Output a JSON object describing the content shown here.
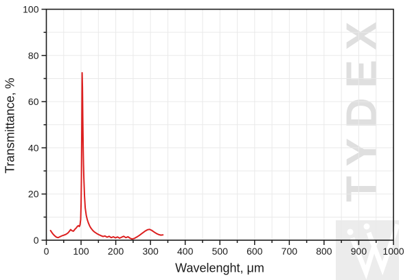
{
  "watermark": {
    "text": "TYDEX",
    "text_color": "#dfdfdf",
    "logo_bg_color": "#ececec",
    "logo_mark_color": "#ffffff"
  },
  "colors": {
    "line": "#dc1f1f",
    "grid": "#e9e9e9",
    "frame": "#1a1a1a",
    "tick_text": "#1a1a1a"
  },
  "chart_data": {
    "type": "line",
    "title": "",
    "xlabel": "Wavelenght, μm",
    "ylabel": "Transmittance, %",
    "xlim": [
      0,
      1000
    ],
    "ylim": [
      0,
      100
    ],
    "x_major_step": 100,
    "x_minor_step": 50,
    "y_major_step": 20,
    "y_minor_step": 10,
    "x_tick_labels": [
      "0",
      "100",
      "200",
      "300",
      "400",
      "500",
      "600",
      "700",
      "800",
      "900",
      "1000"
    ],
    "y_tick_labels": [
      "0",
      "20",
      "40",
      "60",
      "80",
      "100"
    ],
    "grid": true,
    "legend": false,
    "peak": {
      "wavelength_um": 103,
      "transmittance_pct": 72.5
    },
    "series": [
      {
        "name": "transmittance",
        "points": [
          [
            12,
            4.2
          ],
          [
            15,
            3.5
          ],
          [
            19,
            2.7
          ],
          [
            24,
            1.9
          ],
          [
            29,
            1.3
          ],
          [
            34,
            1.1
          ],
          [
            39,
            1.5
          ],
          [
            45,
            1.9
          ],
          [
            51,
            2.2
          ],
          [
            57,
            2.6
          ],
          [
            62,
            3.1
          ],
          [
            66,
            3.8
          ],
          [
            70,
            4.6
          ],
          [
            74,
            4.1
          ],
          [
            78,
            3.9
          ],
          [
            82,
            4.7
          ],
          [
            86,
            5.3
          ],
          [
            90,
            6.1
          ],
          [
            93,
            6.3
          ],
          [
            95,
            5.9
          ],
          [
            97,
            6.6
          ],
          [
            99,
            9.0
          ],
          [
            100,
            16
          ],
          [
            101,
            28
          ],
          [
            102,
            48
          ],
          [
            103,
            72.5
          ],
          [
            104,
            66
          ],
          [
            105,
            52
          ],
          [
            106,
            41
          ],
          [
            107,
            33
          ],
          [
            108,
            27
          ],
          [
            110,
            19
          ],
          [
            112,
            14
          ],
          [
            115,
            10.8
          ],
          [
            118,
            8.9
          ],
          [
            121,
            7.5
          ],
          [
            125,
            6.1
          ],
          [
            129,
            5.1
          ],
          [
            134,
            4.2
          ],
          [
            139,
            3.5
          ],
          [
            145,
            2.9
          ],
          [
            151,
            2.4
          ],
          [
            157,
            2.0
          ],
          [
            163,
            1.6
          ],
          [
            169,
            1.8
          ],
          [
            175,
            1.3
          ],
          [
            181,
            1.7
          ],
          [
            187,
            1.1
          ],
          [
            193,
            1.5
          ],
          [
            199,
            1.0
          ],
          [
            205,
            1.4
          ],
          [
            211,
            0.9
          ],
          [
            217,
            1.3
          ],
          [
            223,
            1.7
          ],
          [
            229,
            1.1
          ],
          [
            235,
            1.5
          ],
          [
            241,
            0.9
          ],
          [
            247,
            0.5
          ],
          [
            254,
            0.8
          ],
          [
            261,
            1.4
          ],
          [
            268,
            2.1
          ],
          [
            276,
            3.0
          ],
          [
            284,
            3.9
          ],
          [
            291,
            4.5
          ],
          [
            297,
            4.7
          ],
          [
            303,
            4.3
          ],
          [
            310,
            3.6
          ],
          [
            317,
            2.9
          ],
          [
            324,
            2.4
          ],
          [
            330,
            2.2
          ],
          [
            336,
            2.3
          ]
        ]
      }
    ]
  }
}
